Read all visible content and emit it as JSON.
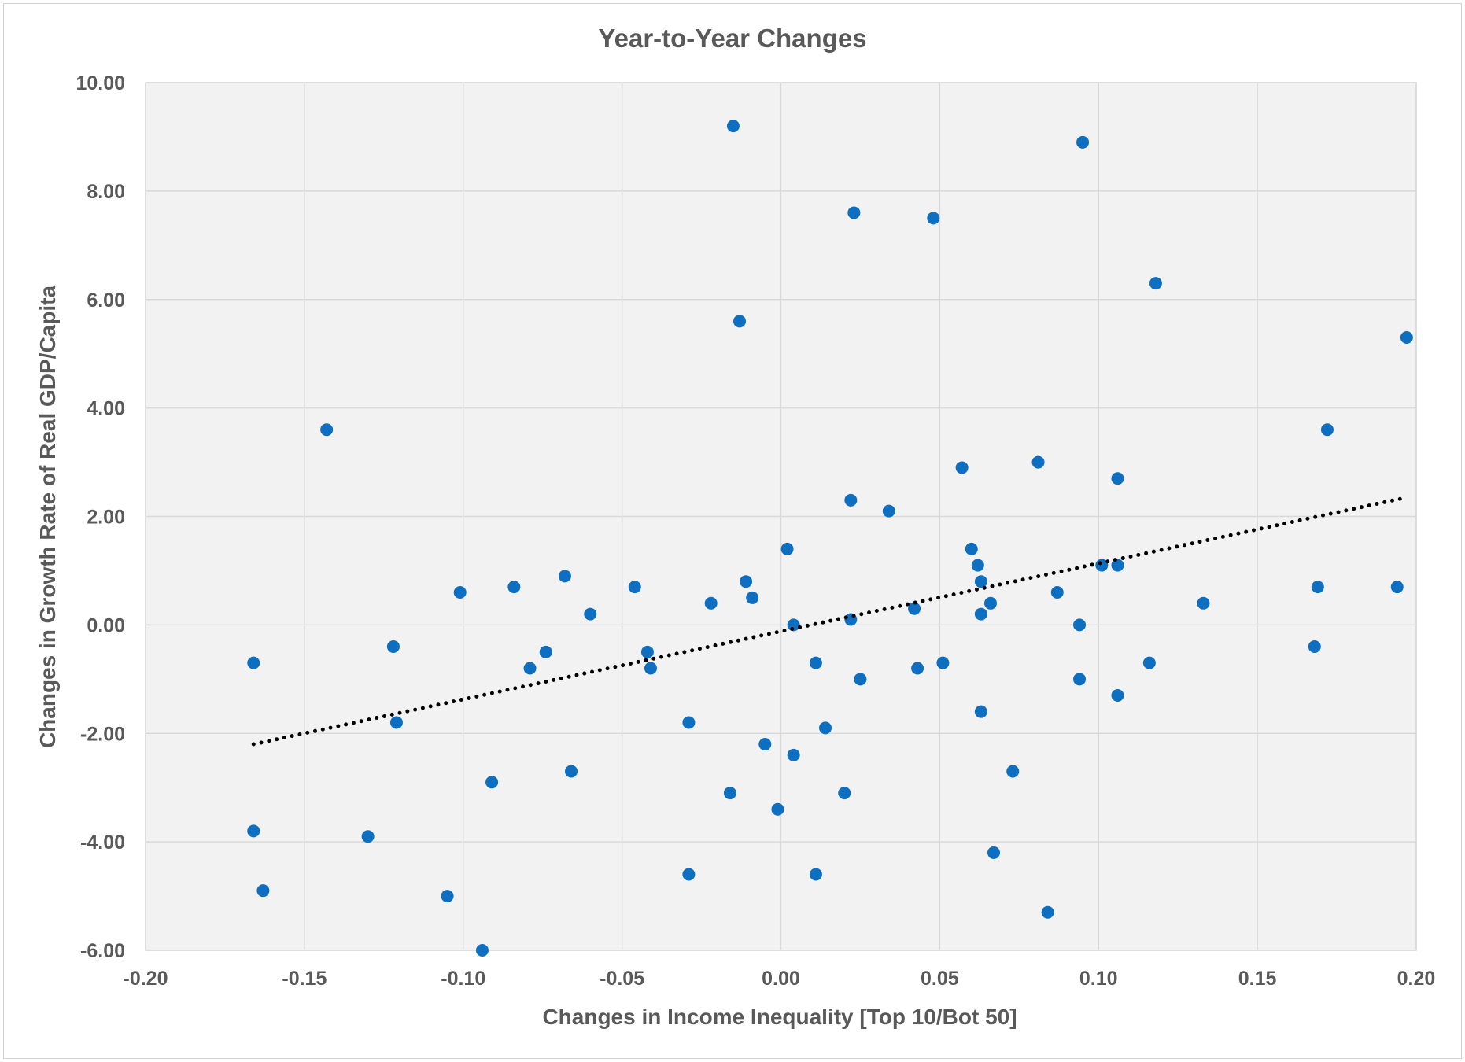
{
  "chart_data": {
    "type": "scatter",
    "title": "Year-to-Year Changes",
    "xlabel": "Changes in Income Inequality [Top 10/Bot 50]",
    "ylabel": "Changes in Growth Rate of Real GDP/Capita",
    "xlim": [
      -0.2,
      0.2
    ],
    "ylim": [
      -6,
      10
    ],
    "x_ticks": [
      "-0.20",
      "-0.15",
      "-0.10",
      "-0.05",
      "0.00",
      "0.05",
      "0.10",
      "0.15",
      "0.20"
    ],
    "x_tick_values": [
      -0.2,
      -0.15,
      -0.1,
      -0.05,
      0,
      0.05,
      0.1,
      0.15,
      0.2
    ],
    "y_ticks": [
      "10.00",
      "8.00",
      "6.00",
      "4.00",
      "2.00",
      "0.00",
      "-2.00",
      "-4.00",
      "-6.00"
    ],
    "y_tick_values": [
      10,
      8,
      6,
      4,
      2,
      0,
      -2,
      -4,
      -6
    ],
    "grid": true,
    "plot_background": "#f2f2f2",
    "grid_color": "#d9d9d9",
    "point_color": "#0e6fc1",
    "trendline": {
      "style": "dotted",
      "color": "#000000",
      "from": [
        -0.166,
        -2.2
      ],
      "to": [
        0.197,
        2.35
      ]
    },
    "points": [
      [
        -0.015,
        9.2
      ],
      [
        0.095,
        8.9
      ],
      [
        0.023,
        7.6
      ],
      [
        0.048,
        7.5
      ],
      [
        0.118,
        6.3
      ],
      [
        -0.013,
        5.6
      ],
      [
        0.197,
        5.3
      ],
      [
        -0.143,
        3.6
      ],
      [
        0.172,
        3.6
      ],
      [
        0.081,
        3.0
      ],
      [
        0.057,
        2.9
      ],
      [
        0.106,
        2.7
      ],
      [
        0.022,
        2.3
      ],
      [
        0.034,
        2.1
      ],
      [
        0.002,
        1.4
      ],
      [
        0.06,
        1.4
      ],
      [
        0.062,
        1.1
      ],
      [
        0.101,
        1.1
      ],
      [
        0.106,
        1.1
      ],
      [
        -0.068,
        0.9
      ],
      [
        -0.011,
        0.8
      ],
      [
        0.063,
        0.8
      ],
      [
        -0.084,
        0.7
      ],
      [
        -0.046,
        0.7
      ],
      [
        0.169,
        0.7
      ],
      [
        0.194,
        0.7
      ],
      [
        -0.101,
        0.6
      ],
      [
        0.087,
        0.6
      ],
      [
        -0.009,
        0.5
      ],
      [
        -0.022,
        0.4
      ],
      [
        0.066,
        0.4
      ],
      [
        0.133,
        0.4
      ],
      [
        0.042,
        0.3
      ],
      [
        -0.06,
        0.2
      ],
      [
        0.063,
        0.2
      ],
      [
        0.022,
        0.1
      ],
      [
        0.004,
        0.0
      ],
      [
        0.094,
        0.0
      ],
      [
        -0.122,
        -0.4
      ],
      [
        0.168,
        -0.4
      ],
      [
        -0.074,
        -0.5
      ],
      [
        -0.042,
        -0.5
      ],
      [
        -0.166,
        -0.7
      ],
      [
        0.011,
        -0.7
      ],
      [
        0.051,
        -0.7
      ],
      [
        0.116,
        -0.7
      ],
      [
        -0.079,
        -0.8
      ],
      [
        -0.041,
        -0.8
      ],
      [
        0.043,
        -0.8
      ],
      [
        0.025,
        -1.0
      ],
      [
        0.094,
        -1.0
      ],
      [
        0.106,
        -1.3
      ],
      [
        0.063,
        -1.6
      ],
      [
        -0.121,
        -1.8
      ],
      [
        -0.029,
        -1.8
      ],
      [
        0.014,
        -1.9
      ],
      [
        -0.005,
        -2.2
      ],
      [
        0.004,
        -2.4
      ],
      [
        -0.066,
        -2.7
      ],
      [
        0.073,
        -2.7
      ],
      [
        -0.091,
        -2.9
      ],
      [
        -0.016,
        -3.1
      ],
      [
        0.02,
        -3.1
      ],
      [
        -0.001,
        -3.4
      ],
      [
        -0.166,
        -3.8
      ],
      [
        -0.13,
        -3.9
      ],
      [
        0.067,
        -4.2
      ],
      [
        -0.029,
        -4.6
      ],
      [
        0.011,
        -4.6
      ],
      [
        -0.163,
        -4.9
      ],
      [
        -0.105,
        -5.0
      ],
      [
        0.084,
        -5.3
      ],
      [
        -0.094,
        -6.0
      ]
    ]
  }
}
